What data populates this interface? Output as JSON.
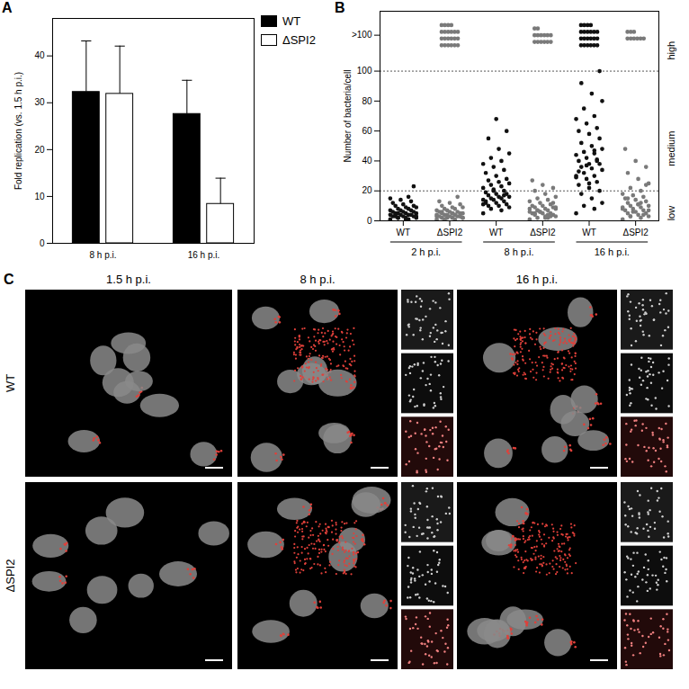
{
  "chart_data": [
    {
      "label": "A",
      "type": "bar",
      "categories": [
        "8 h p.i.",
        "16 h p.i."
      ],
      "series": [
        {
          "name": "WT",
          "color": "#000000",
          "values": [
            32.3,
            27.6
          ],
          "errors": [
            10.9,
            7.2
          ]
        },
        {
          "name": "ΔSPI2",
          "color": "#ffffff",
          "values": [
            31.9,
            8.4
          ],
          "errors": [
            10.2,
            5.5
          ]
        }
      ],
      "y_label": "Fold replication (vs. 1.5 h p.i.)",
      "ylim": [
        0,
        48
      ],
      "yticks": [
        0,
        10,
        20,
        30,
        40
      ],
      "legend": "right"
    },
    {
      "label": "B",
      "type": "scatter",
      "categories": [
        "WT",
        "ΔSPI2",
        "WT",
        "ΔSPI2",
        "WT",
        "ΔSPI2"
      ],
      "groups": [
        "2 h p.i.",
        "8 h p.i.",
        "16 h p.i."
      ],
      "colors": [
        "#111111",
        "#7a7a7a",
        "#111111",
        "#7a7a7a",
        "#111111",
        "#7a7a7a"
      ],
      "values": [
        [
          1,
          1,
          2,
          2,
          2,
          3,
          3,
          3,
          3,
          4,
          4,
          4,
          4,
          5,
          5,
          5,
          5,
          6,
          6,
          6,
          7,
          7,
          7,
          8,
          8,
          9,
          9,
          10,
          10,
          11,
          12,
          13,
          14,
          15,
          16,
          2,
          3,
          1,
          4,
          23
        ],
        [
          1,
          1,
          1,
          2,
          2,
          2,
          3,
          3,
          3,
          3,
          4,
          4,
          4,
          4,
          5,
          5,
          5,
          5,
          6,
          6,
          6,
          7,
          7,
          8,
          8,
          9,
          9,
          10,
          11,
          12,
          13,
          16,
          2,
          3,
          4,
          1,
          2,
          5,
          6,
          3
        ],
        [
          5,
          7,
          8,
          9,
          10,
          10,
          11,
          12,
          12,
          13,
          14,
          14,
          15,
          15,
          16,
          16,
          17,
          18,
          18,
          19,
          20,
          21,
          22,
          23,
          24,
          25,
          26,
          27,
          28,
          30,
          32,
          34,
          36,
          38,
          40,
          42,
          45,
          48,
          55,
          60,
          68,
          13,
          17,
          20,
          11
        ],
        [
          1,
          2,
          2,
          3,
          3,
          4,
          4,
          5,
          5,
          5,
          6,
          6,
          7,
          7,
          8,
          8,
          9,
          9,
          10,
          10,
          11,
          12,
          13,
          14,
          15,
          16,
          18,
          20,
          22,
          24,
          27,
          3,
          6,
          8,
          4,
          7,
          9,
          2,
          5,
          12
        ],
        [
          5,
          8,
          10,
          12,
          15,
          18,
          20,
          22,
          24,
          26,
          28,
          30,
          30,
          32,
          34,
          35,
          36,
          38,
          38,
          40,
          40,
          42,
          44,
          45,
          46,
          48,
          50,
          52,
          55,
          58,
          60,
          62,
          65,
          68,
          70,
          75,
          80,
          85,
          92,
          100,
          25,
          33,
          41,
          37,
          29,
          47
        ],
        [
          1,
          2,
          3,
          3,
          4,
          5,
          5,
          6,
          7,
          7,
          8,
          8,
          9,
          10,
          10,
          11,
          12,
          13,
          14,
          15,
          16,
          17,
          18,
          20,
          22,
          25,
          28,
          32,
          36,
          40,
          48,
          4,
          6,
          9,
          12,
          3,
          7,
          11,
          15,
          24
        ]
      ],
      "above_100_counts": [
        0,
        22,
        0,
        14,
        22,
        9
      ],
      "thresholds": [
        20,
        100
      ],
      "band_labels": [
        "low",
        "medium",
        "high"
      ],
      "y_label": "Number of bacteria/cell",
      "ylim": [
        0,
        140
      ],
      "yticks": [
        0,
        20,
        40,
        60,
        80,
        100,
        {
          "value": 124,
          "label": ">100"
        }
      ]
    }
  ],
  "images": {
    "label": "C",
    "columns": [
      "1.5 h p.i.",
      "8 h p.i.",
      "16 h p.i."
    ],
    "rows": [
      "WT",
      "ΔSPI2"
    ]
  }
}
